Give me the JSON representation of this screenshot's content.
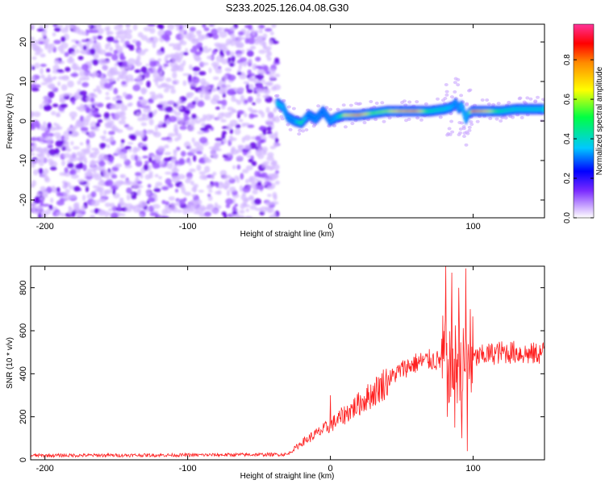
{
  "figure": {
    "title": "S233.2025.126.04.08.G30"
  },
  "chart_data": [
    {
      "type": "heatmap",
      "xlabel": "Height of straight line (km)",
      "ylabel": "Frequency (Hz)",
      "xlim": [
        -210,
        150
      ],
      "ylim": [
        -24.5,
        24.5
      ],
      "xticks": [
        -200,
        -100,
        0,
        100
      ],
      "yticks": [
        -20,
        -10,
        0,
        10,
        20
      ],
      "grid": false,
      "colormap": [
        "#ffffff",
        "#7a2bff",
        "#0000ff",
        "#00c8ff",
        "#00ff66",
        "#ffff00",
        "#ff8c00",
        "#ff0000",
        "#ff3399"
      ],
      "noise_region_x": [
        -210,
        -37
      ],
      "ridge": {
        "x": [
          -37,
          -33,
          -30,
          -25,
          -20,
          -15,
          -10,
          -5,
          0,
          5,
          10,
          20,
          30,
          40,
          50,
          60,
          70,
          80,
          85,
          88,
          90,
          92,
          95,
          97,
          100,
          110,
          120,
          130,
          140,
          150
        ],
        "freq": [
          4.5,
          3.5,
          1.0,
          0.0,
          -0.5,
          1.5,
          0.5,
          2.5,
          0.0,
          1.0,
          1.5,
          1.5,
          2.0,
          2.5,
          2.5,
          2.5,
          2.5,
          3.0,
          3.5,
          4.5,
          3.0,
          4.0,
          0.5,
          2.0,
          2.5,
          2.5,
          2.5,
          3.0,
          3.0,
          3.0
        ],
        "amplitude": [
          0.4,
          0.35,
          0.3,
          0.3,
          0.55,
          0.25,
          0.3,
          0.25,
          0.3,
          0.35,
          0.65,
          0.8,
          0.55,
          0.6,
          0.75,
          0.8,
          0.45,
          0.4,
          0.35,
          0.3,
          0.3,
          0.35,
          0.35,
          0.4,
          0.85,
          0.7,
          0.45,
          0.4,
          0.4,
          0.4
        ]
      },
      "colorbar": {
        "label": "Normalized spectral amplitude",
        "range": [
          0.0,
          0.98
        ],
        "ticks": [
          0.0,
          0.2,
          0.4,
          0.6,
          0.8
        ]
      }
    },
    {
      "type": "line",
      "xlabel": "Height of straight line (km)",
      "ylabel": "SNR (10 * v/v)",
      "xlim": [
        -210,
        150
      ],
      "ylim": [
        0,
        900
      ],
      "xticks": [
        -200,
        -100,
        0,
        100
      ],
      "yticks": [
        0,
        200,
        400,
        600,
        800
      ],
      "grid": false,
      "line_color": "#ff2020",
      "envelope": {
        "x": [
          -210,
          -100,
          -30,
          -20,
          -10,
          0,
          10,
          20,
          30,
          40,
          50,
          60,
          70,
          75,
          80,
          85,
          90,
          95,
          100,
          105,
          110,
          120,
          130,
          140,
          150
        ],
        "y": [
          20,
          22,
          25,
          80,
          120,
          160,
          210,
          260,
          310,
          370,
          420,
          450,
          465,
          460,
          470,
          440,
          450,
          420,
          470,
          480,
          490,
          500,
          500,
          490,
          500
        ]
      },
      "spikes": [
        {
          "x": 0,
          "y": 300
        },
        {
          "x": 81,
          "y": 900
        },
        {
          "x": 82,
          "y": 200
        },
        {
          "x": 85,
          "y": 870
        },
        {
          "x": 87,
          "y": 150
        },
        {
          "x": 90,
          "y": 800
        },
        {
          "x": 92,
          "y": 100
        },
        {
          "x": 95,
          "y": 890
        },
        {
          "x": 96,
          "y": 40
        },
        {
          "x": 98,
          "y": 700
        }
      ]
    }
  ]
}
